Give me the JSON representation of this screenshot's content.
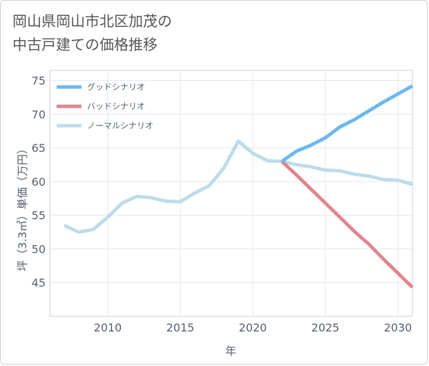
{
  "page": {
    "title_line1": "岡山県岡山市北区加茂の",
    "title_line2": "中古戸建ての価格推移"
  },
  "chart_data": {
    "type": "line",
    "title": "岡山県岡山市北区加茂の中古戸建ての価格推移",
    "xlabel": "年",
    "ylabel": "坪（3.3㎡）単価（万円）",
    "xlim": [
      2006,
      2031
    ],
    "ylim": [
      40,
      76.5
    ],
    "x_ticks": [
      2010,
      2015,
      2020,
      2025,
      2030
    ],
    "y_ticks": [
      45,
      50,
      55,
      60,
      65,
      70,
      75
    ],
    "grid": true,
    "legend_position": "top-left",
    "series": [
      {
        "name": "グッドシナリオ",
        "color": "#6cb8ee",
        "x": [
          2022,
          2023,
          2024,
          2025,
          2026,
          2027,
          2028,
          2029,
          2030,
          2031
        ],
        "y": [
          63.0,
          64.5,
          65.4,
          66.5,
          68.1,
          69.2,
          70.5,
          71.8,
          73.0,
          74.2
        ]
      },
      {
        "name": "バッドシナリオ",
        "color": "#e0868e",
        "x": [
          2022,
          2023,
          2024,
          2025,
          2026,
          2027,
          2028,
          2029,
          2030,
          2031
        ],
        "y": [
          63.0,
          61.0,
          58.9,
          56.8,
          54.7,
          52.6,
          50.7,
          48.5,
          46.4,
          44.3
        ]
      },
      {
        "name": "ノーマルシナリオ",
        "color": "#bcdceb",
        "x": [
          2007,
          2008,
          2009,
          2010,
          2011,
          2012,
          2013,
          2014,
          2015,
          2016,
          2017,
          2018,
          2019,
          2020,
          2021,
          2022,
          2023,
          2024,
          2025,
          2026,
          2027,
          2028,
          2029,
          2030,
          2031
        ],
        "y": [
          53.5,
          52.5,
          52.9,
          54.7,
          56.8,
          57.8,
          57.6,
          57.1,
          57.0,
          58.3,
          59.4,
          62.0,
          66.0,
          64.2,
          63.1,
          63.0,
          62.5,
          62.2,
          61.7,
          61.6,
          61.1,
          60.8,
          60.3,
          60.2,
          59.6
        ]
      }
    ]
  }
}
